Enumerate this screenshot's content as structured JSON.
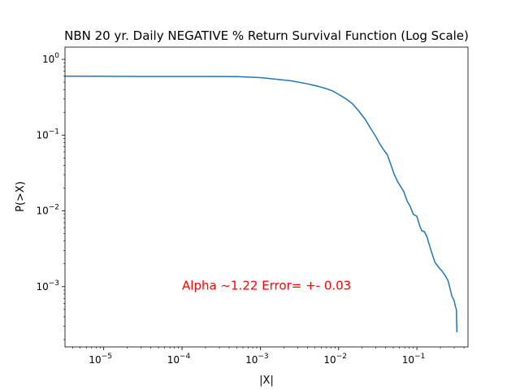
{
  "chart_data": {
    "type": "line",
    "title": "NBN 20 yr. Daily NEGATIVE % Return Survival Function (Log Scale)",
    "xlabel": "|X|",
    "ylabel": "P(>X)",
    "x_scale": "log",
    "y_scale": "log",
    "xlim": [
      3.2e-06,
      0.45
    ],
    "ylim": [
      0.00016,
      1.45
    ],
    "x_ticks": [
      {
        "value": 1e-05,
        "base": "10",
        "exp": "−5"
      },
      {
        "value": 0.0001,
        "base": "10",
        "exp": "−4"
      },
      {
        "value": 0.001,
        "base": "10",
        "exp": "−3"
      },
      {
        "value": 0.01,
        "base": "10",
        "exp": "−2"
      },
      {
        "value": 0.1,
        "base": "10",
        "exp": "−1"
      }
    ],
    "y_ticks": [
      {
        "value": 0.001,
        "base": "10",
        "exp": "−3"
      },
      {
        "value": 0.01,
        "base": "10",
        "exp": "−2"
      },
      {
        "value": 0.1,
        "base": "10",
        "exp": "−1"
      },
      {
        "value": 1,
        "base": "10",
        "exp": "0"
      }
    ],
    "grid": false,
    "series": [
      {
        "color": "#1f77b4",
        "x": [
          3.2e-06,
          1e-05,
          3e-05,
          0.0001,
          0.0002,
          0.0005,
          0.001,
          0.0015,
          0.0025,
          0.004,
          0.0055,
          0.007,
          0.0085,
          0.01,
          0.0125,
          0.015,
          0.018,
          0.022,
          0.026,
          0.03,
          0.034,
          0.038,
          0.042,
          0.046,
          0.051,
          0.056,
          0.062,
          0.068,
          0.075,
          0.082,
          0.09,
          0.1,
          0.108,
          0.115,
          0.125,
          0.135,
          0.145,
          0.155,
          0.17,
          0.19,
          0.21,
          0.23,
          0.25,
          0.265,
          0.28,
          0.3,
          0.31,
          0.32,
          0.322,
          0.325
        ],
        "y": [
          0.6,
          0.598,
          0.595,
          0.594,
          0.594,
          0.593,
          0.575,
          0.55,
          0.52,
          0.475,
          0.44,
          0.41,
          0.38,
          0.345,
          0.3,
          0.26,
          0.21,
          0.16,
          0.12,
          0.095,
          0.075,
          0.063,
          0.055,
          0.042,
          0.031,
          0.025,
          0.021,
          0.018,
          0.0135,
          0.0115,
          0.009,
          0.0085,
          0.0065,
          0.0055,
          0.0053,
          0.0045,
          0.0035,
          0.0028,
          0.0021,
          0.0018,
          0.0016,
          0.0014,
          0.0012,
          0.00095,
          0.00075,
          0.00065,
          0.00055,
          0.0005,
          0.00035,
          0.00025
        ]
      }
    ],
    "annotations": [
      {
        "text": "Alpha ~1.22  Error= +- 0.03",
        "color": "#ff0000",
        "x": 0.0001,
        "y": 0.00103
      }
    ]
  }
}
